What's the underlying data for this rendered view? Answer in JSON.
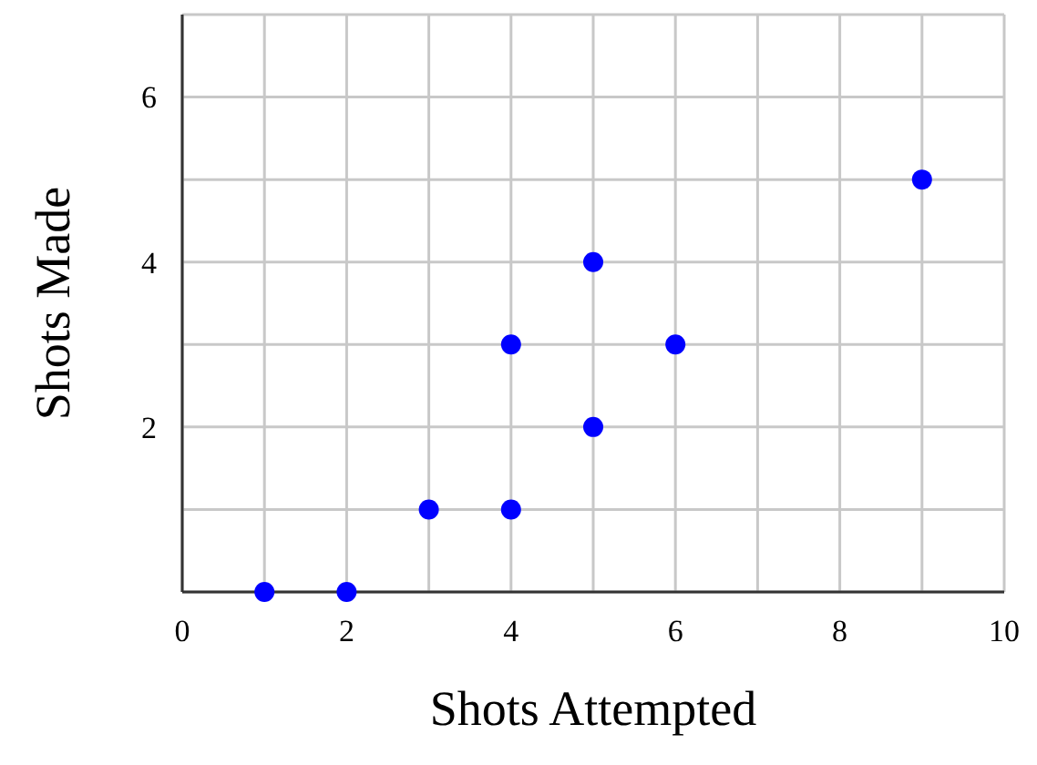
{
  "chart_data": {
    "type": "scatter",
    "xlabel": "Shots Attempted",
    "ylabel": "Shots Made",
    "x": [
      1,
      2,
      3,
      4,
      4,
      5,
      5,
      6,
      9
    ],
    "series": [
      {
        "color": "#0000ff",
        "values": [
          0,
          0,
          1,
          1,
          3,
          2,
          4,
          3,
          5
        ]
      }
    ],
    "xlim": [
      0,
      10
    ],
    "ylim": [
      0,
      7
    ],
    "xticks": [
      0,
      {
        "value": 1,
        "label": null
      },
      2,
      {
        "value": 3,
        "label": null
      },
      4,
      {
        "value": 5,
        "label": null
      },
      6,
      {
        "value": 7,
        "label": null
      },
      8,
      {
        "value": 9,
        "label": null
      },
      10
    ],
    "yticks": [
      {
        "value": 0,
        "label": null
      },
      {
        "value": 1,
        "label": null
      },
      2,
      {
        "value": 3,
        "label": null
      },
      4,
      {
        "value": 5,
        "label": null
      },
      6,
      {
        "value": 7,
        "label": null
      }
    ],
    "grid": true,
    "marker": "circle"
  }
}
